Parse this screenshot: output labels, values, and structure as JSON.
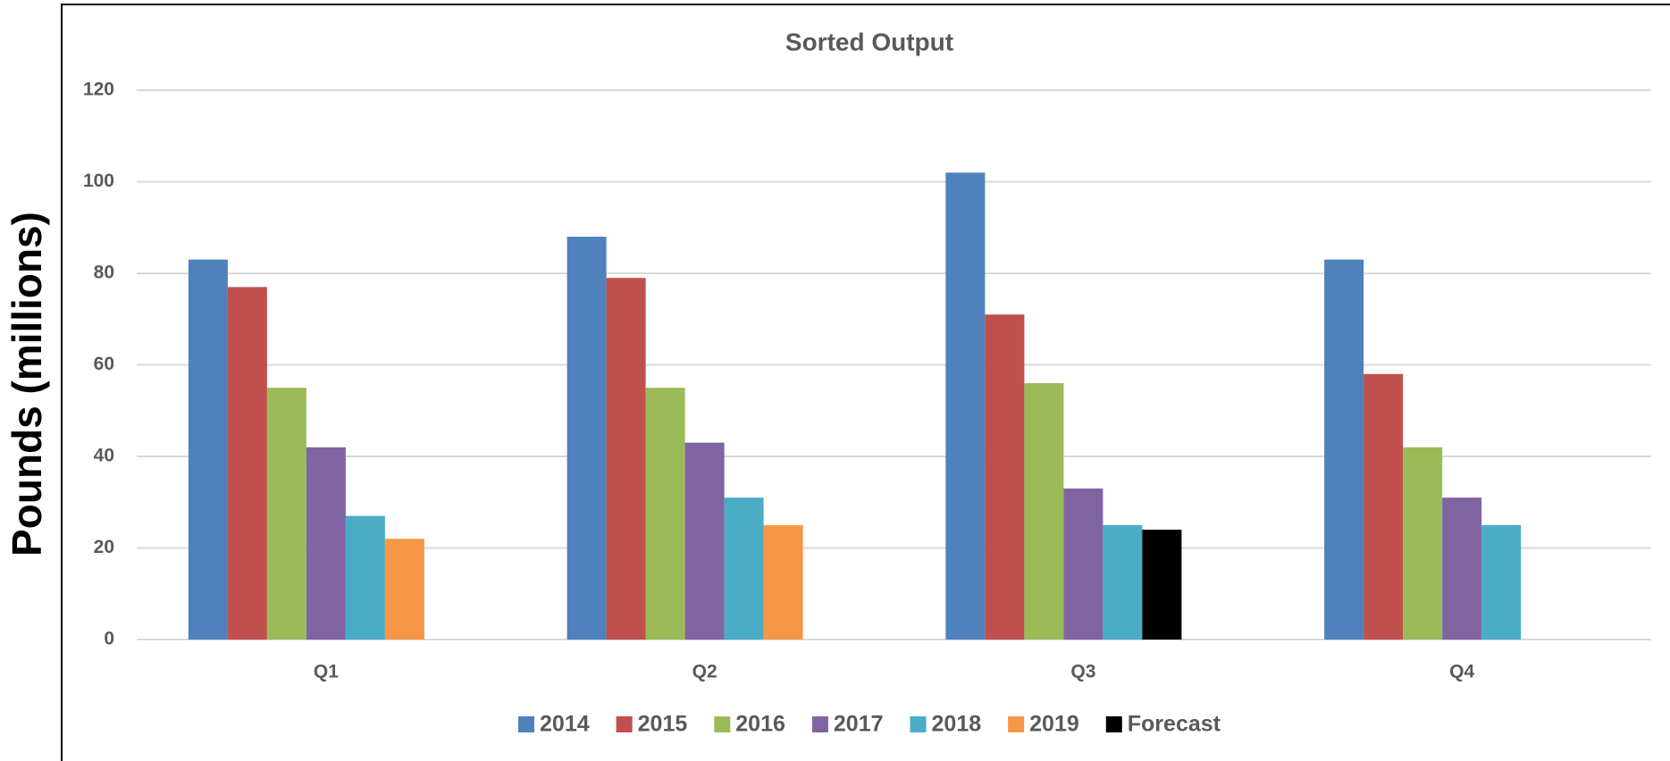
{
  "chart_data": {
    "type": "bar",
    "title": "Sorted Output",
    "ylabel": "Pounds (millions)",
    "categories": [
      "Q1",
      "Q2",
      "Q3",
      "Q4"
    ],
    "series": [
      {
        "name": "2014",
        "color": "#4f81bd",
        "values": [
          83,
          88,
          102,
          83
        ]
      },
      {
        "name": "2015",
        "color": "#c0504d",
        "values": [
          77,
          79,
          71,
          58
        ]
      },
      {
        "name": "2016",
        "color": "#9bbb59",
        "values": [
          55,
          55,
          56,
          42
        ]
      },
      {
        "name": "2017",
        "color": "#8064a2",
        "values": [
          42,
          43,
          33,
          31
        ]
      },
      {
        "name": "2018",
        "color": "#4bacc6",
        "values": [
          27,
          31,
          25,
          25
        ]
      },
      {
        "name": "2019",
        "color": "#f79646",
        "values": [
          22,
          25,
          null,
          null
        ]
      },
      {
        "name": "Forecast",
        "color": "#000000",
        "values": [
          null,
          null,
          24,
          null
        ]
      }
    ],
    "ylim": [
      0,
      120
    ],
    "yticks": [
      0,
      20,
      40,
      60,
      80,
      100,
      120
    ],
    "grid": true,
    "legend": "bottom"
  }
}
